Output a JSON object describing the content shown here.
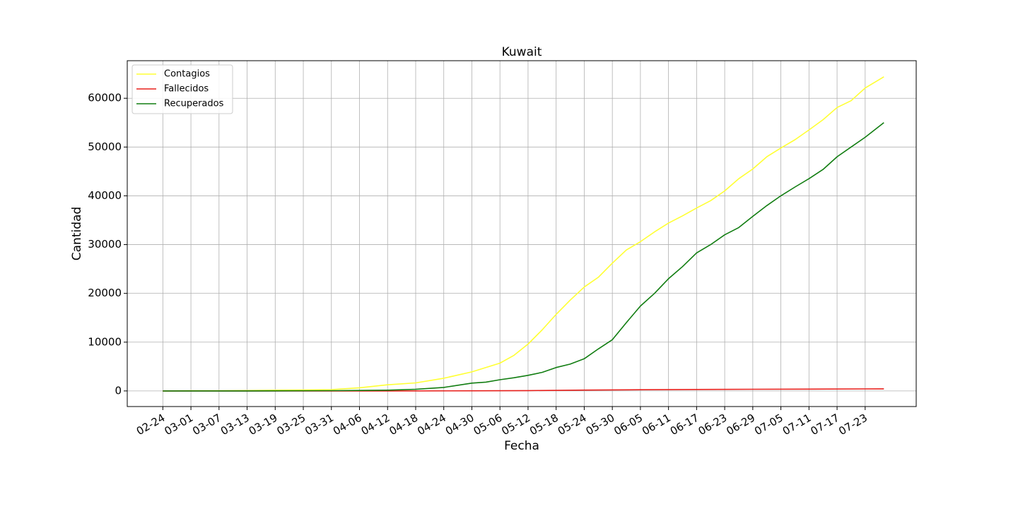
{
  "chart_data": {
    "type": "line",
    "title": "Kuwait",
    "xlabel": "Fecha",
    "ylabel": "Cantidad",
    "grid": true,
    "legend_position": "top-left",
    "x_ticks": [
      "02-24",
      "03-01",
      "03-07",
      "03-13",
      "03-19",
      "03-25",
      "03-31",
      "04-06",
      "04-12",
      "04-18",
      "04-24",
      "04-30",
      "05-06",
      "05-12",
      "05-18",
      "05-24",
      "05-30",
      "06-05",
      "06-11",
      "06-17",
      "06-23",
      "06-29",
      "07-05",
      "07-11",
      "07-17",
      "07-23"
    ],
    "y_ticks": [
      0,
      10000,
      20000,
      30000,
      40000,
      50000,
      60000
    ],
    "ylim": [
      -3200,
      67700
    ],
    "x_range_days": [
      -7.6,
      160.9
    ],
    "series": [
      {
        "name": "Contagios",
        "color": "#ffff33",
        "points": [
          [
            "02-24",
            0
          ],
          [
            "03-01",
            50
          ],
          [
            "03-07",
            60
          ],
          [
            "03-13",
            80
          ],
          [
            "03-19",
            150
          ],
          [
            "03-25",
            190
          ],
          [
            "03-31",
            270
          ],
          [
            "04-06",
            650
          ],
          [
            "04-12",
            1250
          ],
          [
            "04-18",
            1650
          ],
          [
            "04-24",
            2600
          ],
          [
            "04-30",
            3900
          ],
          [
            "05-06",
            5700
          ],
          [
            "05-09",
            7300
          ],
          [
            "05-12",
            9600
          ],
          [
            "05-15",
            12500
          ],
          [
            "05-18",
            15700
          ],
          [
            "05-21",
            18600
          ],
          [
            "05-24",
            21300
          ],
          [
            "05-27",
            23300
          ],
          [
            "05-30",
            26200
          ],
          [
            "06-02",
            28900
          ],
          [
            "06-05",
            30600
          ],
          [
            "06-08",
            32600
          ],
          [
            "06-11",
            34400
          ],
          [
            "06-14",
            35900
          ],
          [
            "06-17",
            37500
          ],
          [
            "06-20",
            39000
          ],
          [
            "06-23",
            41000
          ],
          [
            "06-26",
            43500
          ],
          [
            "06-29",
            45500
          ],
          [
            "07-02",
            48000
          ],
          [
            "07-05",
            49800
          ],
          [
            "07-08",
            51500
          ],
          [
            "07-11",
            53500
          ],
          [
            "07-14",
            55600
          ],
          [
            "07-17",
            58100
          ],
          [
            "07-20",
            59500
          ],
          [
            "07-23",
            62100
          ],
          [
            "07-27",
            64400
          ]
        ]
      },
      {
        "name": "Fallecidos",
        "color": "#e8201c",
        "points": [
          [
            "02-24",
            0
          ],
          [
            "03-31",
            1
          ],
          [
            "04-12",
            3
          ],
          [
            "04-30",
            26
          ],
          [
            "05-12",
            75
          ],
          [
            "05-24",
            165
          ],
          [
            "06-05",
            250
          ],
          [
            "06-17",
            300
          ],
          [
            "06-29",
            340
          ],
          [
            "07-11",
            373
          ],
          [
            "07-23",
            418
          ],
          [
            "07-27",
            436
          ]
        ]
      },
      {
        "name": "Recuperados",
        "color": "#117d11",
        "points": [
          [
            "02-24",
            0
          ],
          [
            "03-13",
            2
          ],
          [
            "03-31",
            60
          ],
          [
            "04-12",
            150
          ],
          [
            "04-18",
            330
          ],
          [
            "04-24",
            720
          ],
          [
            "04-30",
            1600
          ],
          [
            "05-03",
            1800
          ],
          [
            "05-06",
            2300
          ],
          [
            "05-09",
            2700
          ],
          [
            "05-12",
            3200
          ],
          [
            "05-15",
            3800
          ],
          [
            "05-18",
            4800
          ],
          [
            "05-21",
            5500
          ],
          [
            "05-24",
            6600
          ],
          [
            "05-27",
            8600
          ],
          [
            "05-30",
            10500
          ],
          [
            "06-02",
            14000
          ],
          [
            "06-05",
            17400
          ],
          [
            "06-08",
            20000
          ],
          [
            "06-11",
            23000
          ],
          [
            "06-14",
            25500
          ],
          [
            "06-17",
            28300
          ],
          [
            "06-20",
            30000
          ],
          [
            "06-23",
            32000
          ],
          [
            "06-26",
            33500
          ],
          [
            "06-29",
            35800
          ],
          [
            "07-02",
            38000
          ],
          [
            "07-05",
            40000
          ],
          [
            "07-08",
            41800
          ],
          [
            "07-11",
            43500
          ],
          [
            "07-14",
            45400
          ],
          [
            "07-17",
            48000
          ],
          [
            "07-20",
            50000
          ],
          [
            "07-23",
            52000
          ],
          [
            "07-27",
            55000
          ]
        ]
      }
    ]
  }
}
